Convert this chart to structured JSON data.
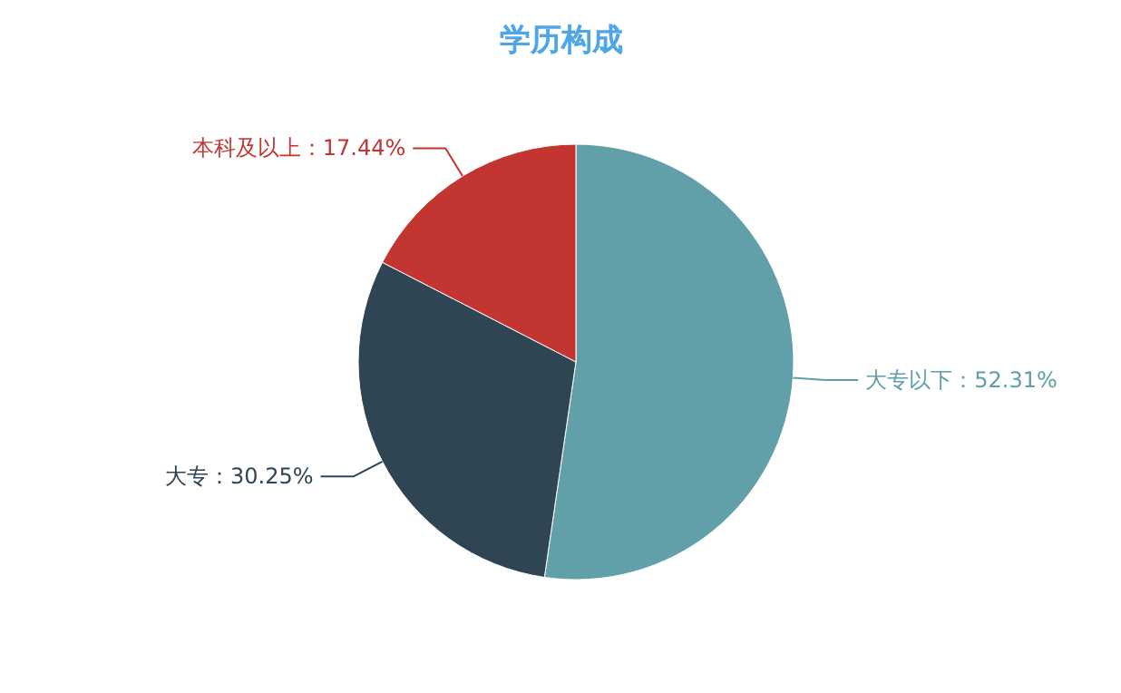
{
  "chart_data": {
    "type": "pie",
    "title": "学历构成",
    "categories": [
      "大专以下",
      "大专",
      "本科及以上"
    ],
    "values": [
      52.31,
      30.25,
      17.44
    ],
    "value_labels": [
      "52.31%",
      "30.25%",
      "17.44%"
    ],
    "colors": [
      "#61a0a8",
      "#2f4554",
      "#c23531"
    ]
  }
}
